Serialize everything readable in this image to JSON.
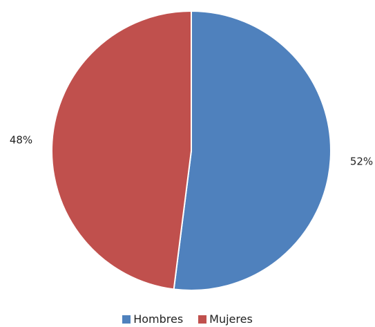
{
  "chart_data": {
    "type": "pie",
    "categories": [
      "Hombres",
      "Mujeres"
    ],
    "values": [
      52,
      48
    ],
    "data_labels": [
      "52%",
      "48%"
    ],
    "colors": [
      "#4f81bd",
      "#c0504d"
    ],
    "legend_position": "bottom",
    "start_angle": "12 o'clock, clockwise"
  }
}
